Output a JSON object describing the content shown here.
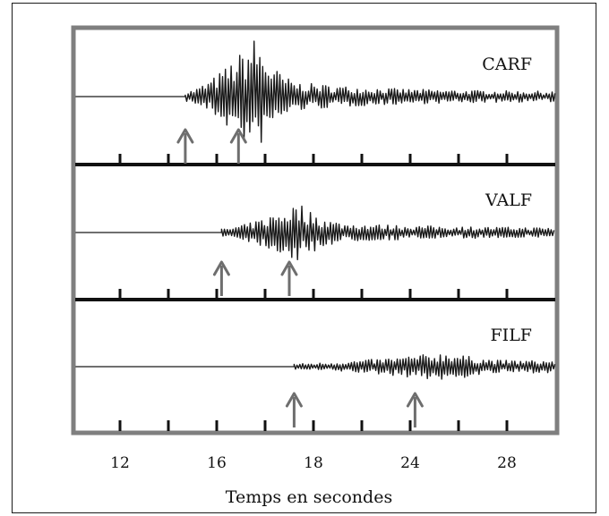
{
  "chart_data": {
    "type": "line",
    "title": "",
    "xlabel": "Temps en secondes",
    "ylabel": "",
    "x_tick_labels": [
      "12",
      "16",
      "18",
      "24",
      "28"
    ],
    "grid": false,
    "legend": "none",
    "colors": {
      "frame": "#7f7f7f",
      "trace": "#1a1a1a",
      "arrow": "#6e6e6e",
      "baseline": "#6f6f6f"
    },
    "series": [
      {
        "name": "CARF",
        "onset_tick": 1.35,
        "arrivals": [
          1.35,
          2.45
        ],
        "peak_tick": 2.8,
        "peak_amplitude": 1.0,
        "decay": 0.55,
        "noise": 0.08
      },
      {
        "name": "VALF",
        "onset_tick": 2.1,
        "arrivals": [
          2.1,
          3.5
        ],
        "peak_tick": 3.7,
        "peak_amplitude": 0.5,
        "decay": 0.35,
        "noise": 0.06
      },
      {
        "name": "FILF",
        "onset_tick": 3.6,
        "arrivals": [
          3.6,
          6.1
        ],
        "peak_tick": 6.8,
        "peak_amplitude": 0.25,
        "decay": 0.08,
        "noise": 0.05
      }
    ]
  }
}
